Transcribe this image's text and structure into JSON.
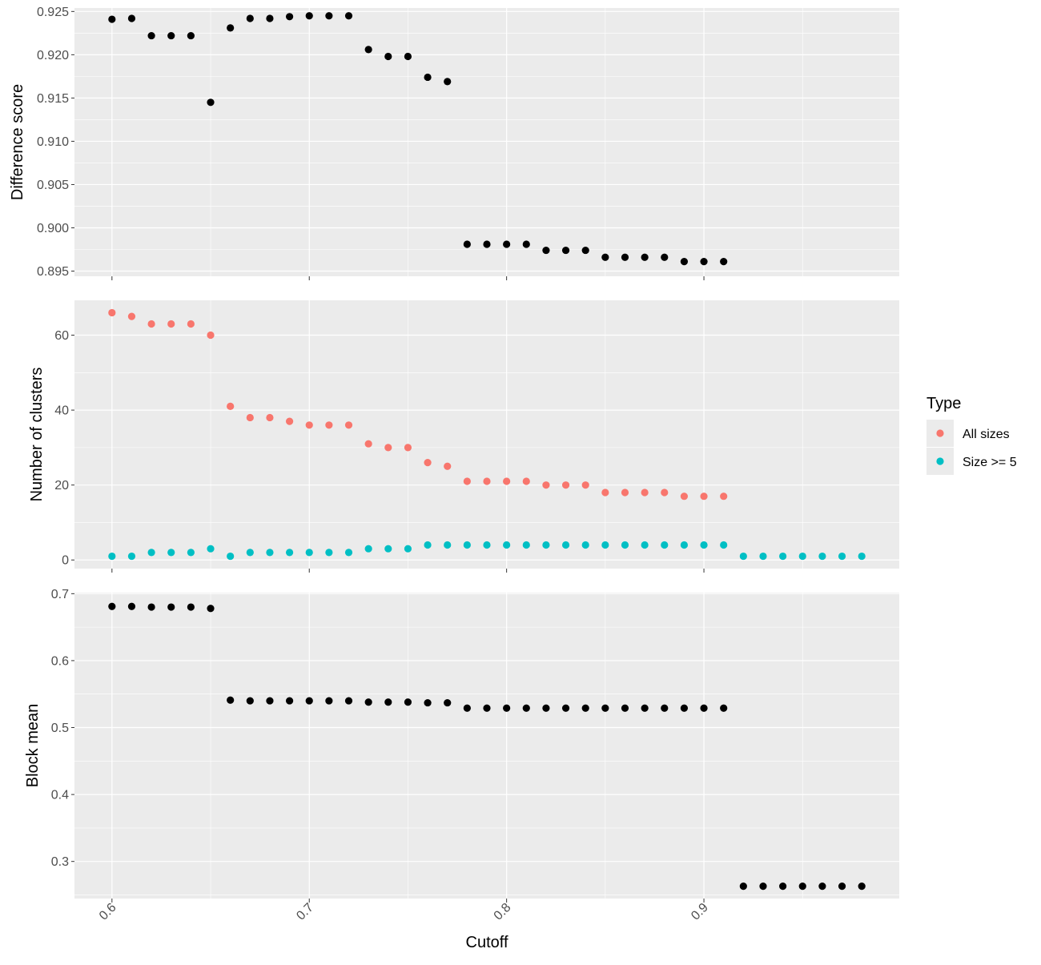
{
  "chart_data": [
    {
      "type": "scatter",
      "ylabel": "Difference score",
      "xlim": [
        0.581,
        0.999
      ],
      "ylim": [
        0.8944,
        0.9254
      ],
      "x_ticks": [
        0.6,
        0.7,
        0.8,
        0.9
      ],
      "y_ticks": [
        0.895,
        0.9,
        0.905,
        0.91,
        0.915,
        0.92,
        0.925
      ],
      "y_tick_labels": [
        "0.895",
        "0.900",
        "0.905",
        "0.910",
        "0.915",
        "0.920",
        "0.925"
      ],
      "grid": true,
      "point_color": "#000000",
      "x": [
        0.6,
        0.61,
        0.62,
        0.63,
        0.64,
        0.65,
        0.66,
        0.67,
        0.68,
        0.69,
        0.7,
        0.71,
        0.72,
        0.73,
        0.74,
        0.75,
        0.76,
        0.77,
        0.78,
        0.79,
        0.8,
        0.81,
        0.82,
        0.83,
        0.84,
        0.85,
        0.86,
        0.87,
        0.88,
        0.89,
        0.9,
        0.91
      ],
      "y": [
        0.9241,
        0.9242,
        0.9222,
        0.9222,
        0.9222,
        0.9145,
        0.9231,
        0.9242,
        0.9242,
        0.9244,
        0.9245,
        0.9245,
        0.9245,
        0.9206,
        0.9198,
        0.9198,
        0.9174,
        0.9169,
        0.8981,
        0.8981,
        0.8981,
        0.8981,
        0.8974,
        0.8974,
        0.8974,
        0.8966,
        0.8966,
        0.8966,
        0.8966,
        0.8961,
        0.8961,
        0.8961
      ]
    },
    {
      "type": "scatter",
      "ylabel": "Number of clusters",
      "xlim": [
        0.581,
        0.999
      ],
      "ylim": [
        -2.3,
        69.3
      ],
      "x_ticks": [
        0.6,
        0.7,
        0.8,
        0.9
      ],
      "y_ticks": [
        0,
        20,
        40,
        60
      ],
      "y_tick_labels": [
        "0",
        "20",
        "40",
        "60"
      ],
      "grid": true,
      "legend": {
        "title": "Type",
        "position": "right"
      },
      "series": [
        {
          "name": "All sizes",
          "color": "#F8766D",
          "x": [
            0.6,
            0.61,
            0.62,
            0.63,
            0.64,
            0.65,
            0.66,
            0.67,
            0.68,
            0.69,
            0.7,
            0.71,
            0.72,
            0.73,
            0.74,
            0.75,
            0.76,
            0.77,
            0.78,
            0.79,
            0.8,
            0.81,
            0.82,
            0.83,
            0.84,
            0.85,
            0.86,
            0.87,
            0.88,
            0.89,
            0.9,
            0.91
          ],
          "values": [
            66,
            65,
            63,
            63,
            63,
            60,
            41,
            38,
            38,
            37,
            36,
            36,
            36,
            31,
            30,
            30,
            26,
            25,
            21,
            21,
            21,
            21,
            20,
            20,
            20,
            18,
            18,
            18,
            18,
            17,
            17,
            17
          ]
        },
        {
          "name": "Size >= 5",
          "color": "#00BFC4",
          "x": [
            0.6,
            0.61,
            0.62,
            0.63,
            0.64,
            0.65,
            0.66,
            0.67,
            0.68,
            0.69,
            0.7,
            0.71,
            0.72,
            0.73,
            0.74,
            0.75,
            0.76,
            0.77,
            0.78,
            0.79,
            0.8,
            0.81,
            0.82,
            0.83,
            0.84,
            0.85,
            0.86,
            0.87,
            0.88,
            0.89,
            0.9,
            0.91,
            0.92,
            0.93,
            0.94,
            0.95,
            0.96,
            0.97,
            0.98
          ],
          "values": [
            1,
            1,
            2,
            2,
            2,
            3,
            1,
            2,
            2,
            2,
            2,
            2,
            2,
            3,
            3,
            3,
            4,
            4,
            4,
            4,
            4,
            4,
            4,
            4,
            4,
            4,
            4,
            4,
            4,
            4,
            4,
            4,
            1,
            1,
            1,
            1,
            1,
            1,
            1
          ]
        }
      ]
    },
    {
      "type": "scatter",
      "ylabel": "Block mean",
      "xlabel": "Cutoff",
      "xlim": [
        0.581,
        0.999
      ],
      "ylim": [
        0.2446,
        0.7016
      ],
      "x_ticks": [
        0.6,
        0.7,
        0.8,
        0.9
      ],
      "x_tick_labels": [
        "0.6",
        "0.7",
        "0.8",
        "0.9"
      ],
      "y_ticks": [
        0.3,
        0.4,
        0.5,
        0.6,
        0.7
      ],
      "y_tick_labels": [
        "0.3",
        "0.4",
        "0.5",
        "0.6",
        "0.7"
      ],
      "grid": true,
      "point_color": "#000000",
      "x": [
        0.6,
        0.61,
        0.62,
        0.63,
        0.64,
        0.65,
        0.66,
        0.67,
        0.68,
        0.69,
        0.7,
        0.71,
        0.72,
        0.73,
        0.74,
        0.75,
        0.76,
        0.77,
        0.78,
        0.79,
        0.8,
        0.81,
        0.82,
        0.83,
        0.84,
        0.85,
        0.86,
        0.87,
        0.88,
        0.89,
        0.9,
        0.91,
        0.92,
        0.93,
        0.94,
        0.95,
        0.96,
        0.97,
        0.98
      ],
      "y": [
        0.681,
        0.681,
        0.68,
        0.68,
        0.68,
        0.678,
        0.541,
        0.54,
        0.54,
        0.54,
        0.54,
        0.54,
        0.54,
        0.538,
        0.538,
        0.538,
        0.537,
        0.537,
        0.529,
        0.529,
        0.529,
        0.529,
        0.529,
        0.529,
        0.529,
        0.529,
        0.529,
        0.529,
        0.529,
        0.529,
        0.529,
        0.529,
        0.263,
        0.263,
        0.263,
        0.263,
        0.263,
        0.263,
        0.263
      ]
    }
  ]
}
